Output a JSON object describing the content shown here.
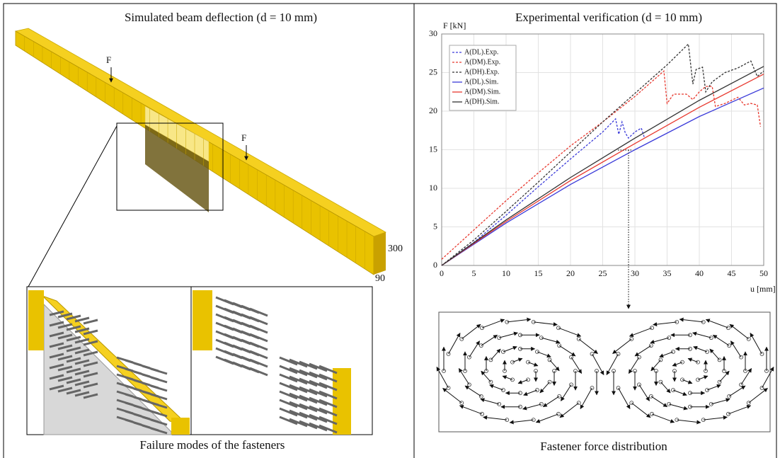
{
  "left_panel": {
    "title": "Simulated beam deflection (d = 10 mm)",
    "force_labels": [
      "F",
      "F"
    ],
    "dimensions": [
      300,
      90
    ],
    "caption": "Failure modes of the fasteners"
  },
  "chart_data": {
    "type": "line",
    "title": "Experimental verification (d = 10 mm)",
    "ylabel": "F [kN]",
    "xlabel": "u [mm]",
    "xlim": [
      0,
      50
    ],
    "xticks": [
      0,
      5,
      10,
      15,
      20,
      25,
      30,
      35,
      40,
      45,
      50
    ],
    "ylim": [
      0,
      30
    ],
    "yticks": [
      0,
      5,
      10,
      15,
      20,
      25,
      30
    ],
    "grid": true,
    "legend": "upper left",
    "series": [
      {
        "name": "A(DL).Exp.",
        "color": "#3b3bd9",
        "line_style": "dashed",
        "x": [
          0,
          5,
          10,
          15,
          20,
          25,
          27,
          27.5,
          28,
          28.5,
          29,
          30,
          31,
          31.5
        ],
        "values": [
          0,
          3,
          6.5,
          10.2,
          13.8,
          17.3,
          19,
          17,
          18.6,
          17.2,
          16.5,
          17.3,
          17.8,
          16.5
        ]
      },
      {
        "name": "A(DM).Exp.",
        "color": "#e8392f",
        "line_style": "dashed",
        "x": [
          0,
          5,
          10,
          15,
          20,
          25,
          30,
          34.5,
          35,
          36,
          38,
          39,
          40,
          41,
          42,
          42.5,
          44,
          46,
          47,
          48,
          49,
          49.5
        ],
        "values": [
          0.8,
          4.6,
          8.4,
          12,
          15.5,
          18.6,
          21.9,
          25.2,
          21,
          22.2,
          22.2,
          21.5,
          22.5,
          23.2,
          23.2,
          20.6,
          21,
          21.8,
          20.8,
          21,
          20.8,
          18
        ]
      },
      {
        "name": "A(DH).Exp.",
        "color": "#333333",
        "line_style": "dashed",
        "x": [
          0,
          5,
          10,
          15,
          20,
          25,
          30,
          35,
          38.3,
          39,
          39.5,
          40.5,
          41,
          42,
          44,
          46,
          48,
          49,
          50
        ],
        "values": [
          0,
          3.3,
          7,
          10.8,
          14.7,
          18.6,
          22.3,
          26,
          28.7,
          23.5,
          25.4,
          25.7,
          22.5,
          23.8,
          25,
          25.6,
          26.5,
          24.5,
          25.2
        ]
      },
      {
        "name": "A(DL).Sim.",
        "color": "#3b3bd9",
        "line_style": "solid",
        "x": [
          0,
          10,
          20,
          30,
          40,
          50
        ],
        "values": [
          0,
          5.5,
          10.5,
          15,
          19.3,
          23
        ]
      },
      {
        "name": "A(DM).Sim.",
        "color": "#e8392f",
        "line_style": "solid",
        "x": [
          0,
          10,
          20,
          30,
          40,
          50
        ],
        "values": [
          0,
          5.7,
          11,
          15.8,
          20.5,
          24.8
        ]
      },
      {
        "name": "A(DH).Sim.",
        "color": "#333333",
        "line_style": "solid",
        "x": [
          0,
          10,
          20,
          30,
          40,
          50
        ],
        "values": [
          0,
          5.9,
          11.4,
          16.5,
          21.4,
          25.8
        ]
      }
    ]
  },
  "right_panel": {
    "caption": "Fastener force distribution"
  }
}
